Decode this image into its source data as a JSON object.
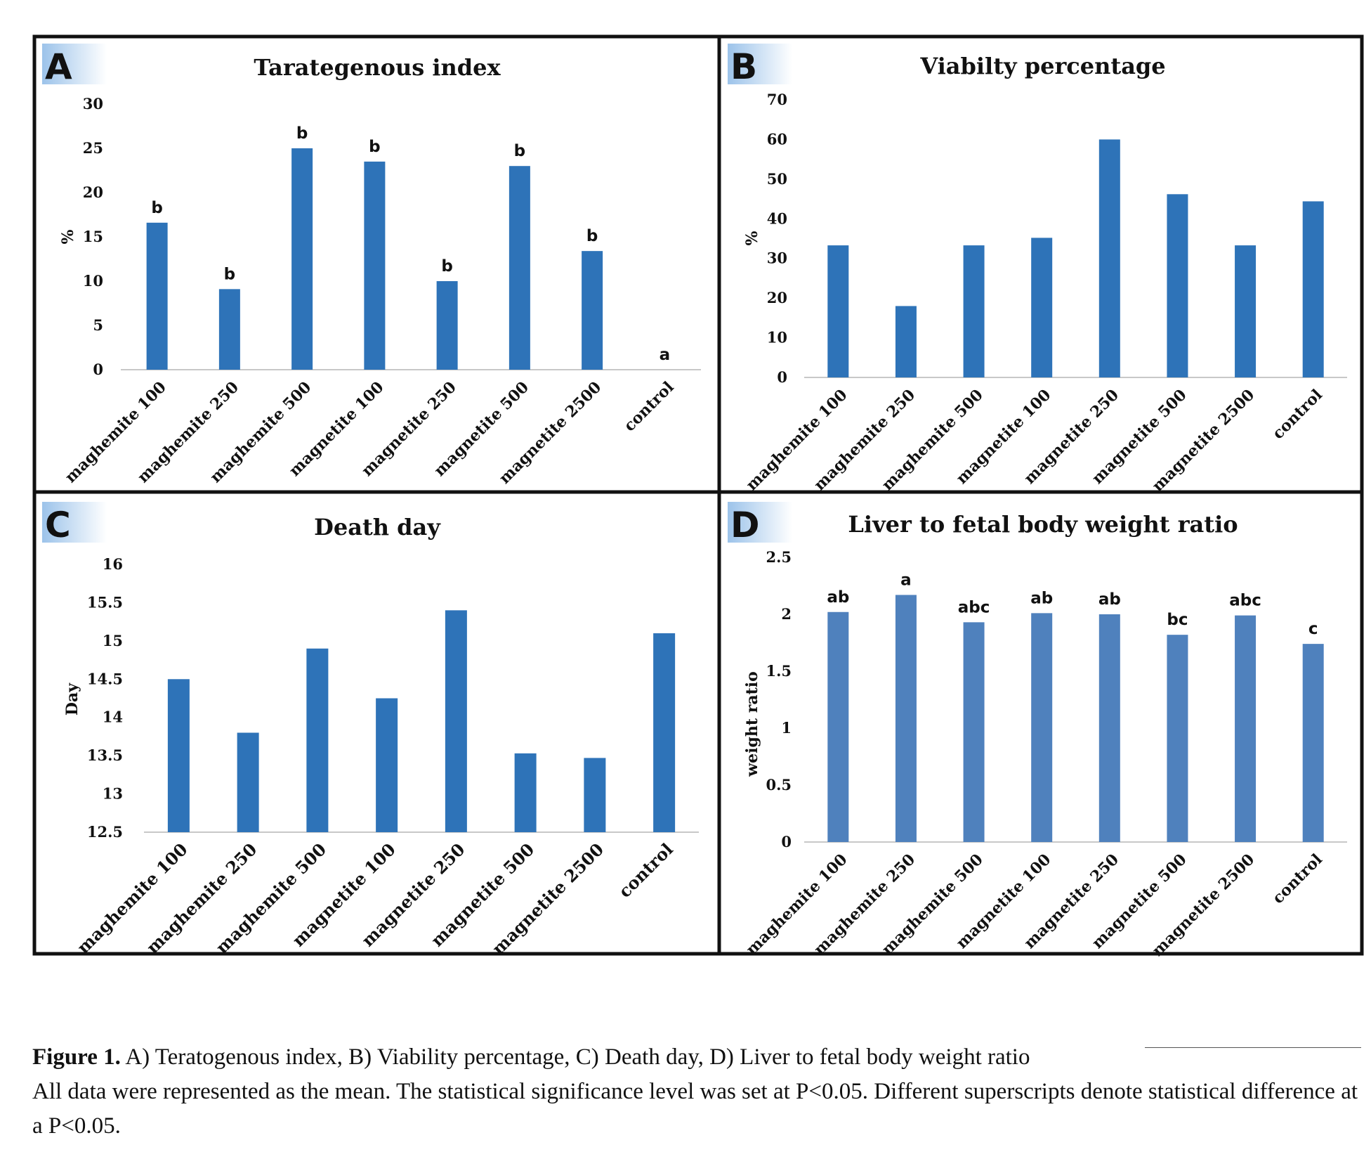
{
  "panels": [
    {
      "letter": "A",
      "chart_data": {
        "type": "bar",
        "title": "Tarategenous index",
        "ylabel": "%",
        "xlabel": "",
        "ylim": [
          0,
          30
        ],
        "yticks": [
          "0",
          "5",
          "10",
          "15",
          "20",
          "25",
          "30"
        ],
        "categories": [
          "maghemite 100",
          "maghemite 250",
          "maghemite 500",
          "magnetite 100",
          "magnetite 250",
          "magnetite 500",
          "magnetite 2500",
          "control"
        ],
        "values": [
          16.6,
          9.1,
          25.0,
          23.5,
          10.0,
          23.0,
          13.4,
          0
        ],
        "labels": [
          "b",
          "b",
          "b",
          "b",
          "b",
          "b",
          "b",
          "a"
        ],
        "color": "#2e73b8",
        "grid": false
      }
    },
    {
      "letter": "B",
      "chart_data": {
        "type": "bar",
        "title": "Viabilty percentage",
        "ylabel": "%",
        "xlabel": "",
        "ylim": [
          0,
          70
        ],
        "yticks": [
          "0",
          "10",
          "20",
          "30",
          "40",
          "50",
          "60",
          "70"
        ],
        "categories": [
          "maghemite 100",
          "maghemite 250",
          "maghemite 500",
          "magnetite 100",
          "magnetite 250",
          "magnetite 500",
          "magnetite 2500",
          "control"
        ],
        "values": [
          33.3,
          18.0,
          33.3,
          35.2,
          60.0,
          46.2,
          33.3,
          44.4
        ],
        "labels": [],
        "color": "#2e73b8",
        "grid": false
      }
    },
    {
      "letter": "C",
      "chart_data": {
        "type": "bar",
        "title": "Death day",
        "ylabel": "Day",
        "xlabel": "",
        "ylim": [
          12.5,
          16
        ],
        "yticks": [
          "12.5",
          "13",
          "13.5",
          "14",
          "14.5",
          "15",
          "15.5",
          "16"
        ],
        "categories": [
          "maghemite 100",
          "maghemite 250",
          "maghemite 500",
          "magnetite 100",
          "magnetite 250",
          "magnetite 500",
          "magnetite 2500",
          "control"
        ],
        "values": [
          14.5,
          13.8,
          14.9,
          14.25,
          15.4,
          13.53,
          13.47,
          15.1
        ],
        "labels": [],
        "color": "#2e73b8",
        "grid": false
      }
    },
    {
      "letter": "D",
      "chart_data": {
        "type": "bar",
        "title": "Liver to fetal body weight ratio",
        "ylabel": "weight ratio",
        "xlabel": "",
        "ylim": [
          0,
          2.5
        ],
        "yticks": [
          "0",
          "0.5",
          "1",
          "1.5",
          "2",
          "2.5"
        ],
        "categories": [
          "maghemite 100",
          "maghemite 250",
          "maghemite 500",
          "magnetite 100",
          "magnetite 250",
          "magnetite 500",
          "magnetite 2500",
          "control"
        ],
        "values": [
          2.02,
          2.17,
          1.93,
          2.01,
          2.0,
          1.82,
          1.99,
          1.74
        ],
        "labels": [
          "ab",
          "a",
          "abc",
          "ab",
          "ab",
          "bc",
          "abc",
          "c"
        ],
        "color": "#4f81bd",
        "grid": false
      }
    }
  ],
  "caption": {
    "figure_label": "Figure 1.",
    "line1": "A) Teratogenous index, B) Viability percentage, C) Death day, D) Liver to fetal body weight ratio",
    "line2": "All data were represented as the mean. The statistical significance level was set at P<0.05. Different superscripts denote statistical difference at a P<0.05."
  }
}
